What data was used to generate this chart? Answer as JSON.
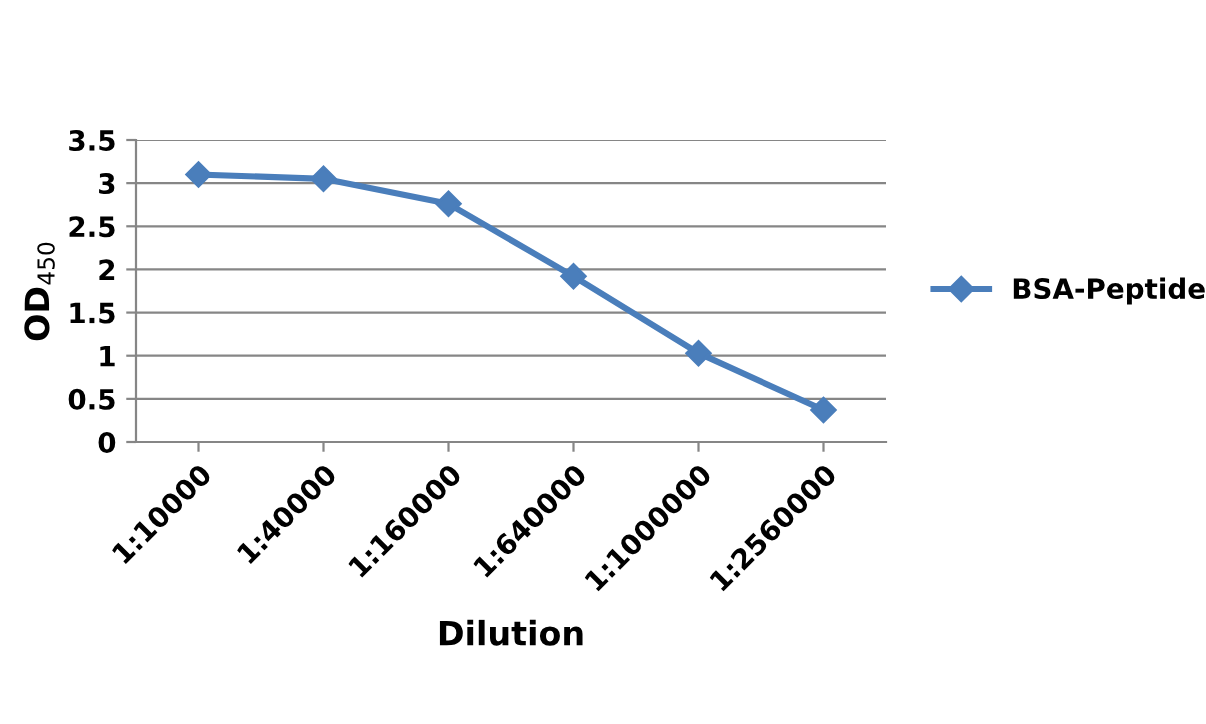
{
  "chart_data": {
    "type": "line",
    "xlabel": "Dilution",
    "ylabel": "OD$_{450}$",
    "categories": [
      "1:10000",
      "1:40000",
      "1:160000",
      "1:640000",
      "1:1000000",
      "1:2560000"
    ],
    "series": [
      {
        "name": "BSA-Peptide",
        "color": "#4a7ebb",
        "values": [
          3.1,
          3.05,
          2.76,
          1.92,
          1.03,
          0.37
        ]
      }
    ],
    "ylim": [
      0,
      3.5
    ],
    "yticks": [
      0,
      0.5,
      1,
      1.5,
      2,
      2.5,
      3,
      3.5
    ],
    "grid": "y",
    "legend": "right",
    "marker": "diamond",
    "line_style": "solid"
  }
}
